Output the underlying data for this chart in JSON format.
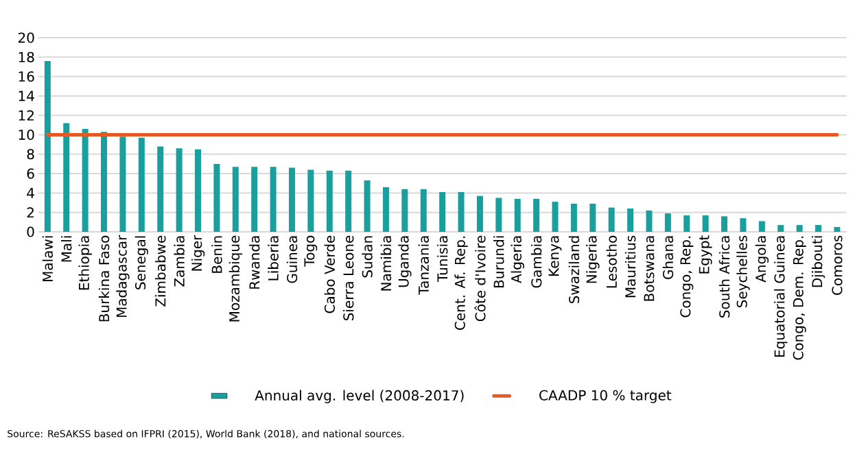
{
  "chart_data": {
    "type": "bar",
    "categories": [
      "Malawi",
      "Mali",
      "Ethiopia",
      "Burkina Faso",
      "Madagascar",
      "Senegal",
      "Zimbabwe",
      "Zambia",
      "Niger",
      "Benin",
      "Mozambique",
      "Rwanda",
      "Liberia",
      "Guinea",
      "Togo",
      "Cabo Verde",
      "Sierra Leone",
      "Sudan",
      "Namibia",
      "Uganda",
      "Tanzania",
      "Tunisia",
      "Cent. Af. Rep.",
      "Côte d'Ivoire",
      "Burundi",
      "Algeria",
      "Gambia",
      "Kenya",
      "Swaziland",
      "Nigeria",
      "Lesotho",
      "Mauritius",
      "Botswana",
      "Ghana",
      "Congo, Rep.",
      "Egypt",
      "South Africa",
      "Seychelles",
      "Angola",
      "Equatorial Guinea",
      "Congo, Dem. Rep.",
      "Djibouti",
      "Comoros"
    ],
    "series": [
      {
        "name": "Annual avg. level (2008-2017)",
        "color": "#1a9e9e",
        "values": [
          17.6,
          11.2,
          10.6,
          10.3,
          9.8,
          9.7,
          8.8,
          8.6,
          8.5,
          7.0,
          6.7,
          6.7,
          6.7,
          6.6,
          6.4,
          6.3,
          6.3,
          5.3,
          4.6,
          4.4,
          4.4,
          4.1,
          4.1,
          3.7,
          3.5,
          3.4,
          3.4,
          3.1,
          2.9,
          2.9,
          2.5,
          2.4,
          2.2,
          1.9,
          1.7,
          1.7,
          1.6,
          1.4,
          1.1,
          0.7,
          0.7,
          0.7,
          0.5
        ]
      }
    ],
    "ref_lines": [
      {
        "axis": "y",
        "value": 10,
        "label": "CAADP 10 % target",
        "color": "#e55a24",
        "line_style": "solid"
      }
    ],
    "ylim": [
      0,
      20
    ],
    "yticks": [
      0,
      2,
      4,
      6,
      8,
      10,
      12,
      14,
      16,
      18,
      20
    ],
    "grid": "y",
    "legend": "bottom",
    "annotations": [
      "Source: ReSAKSS based on IFPRI (2015), World Bank (2018), and national sources."
    ]
  }
}
